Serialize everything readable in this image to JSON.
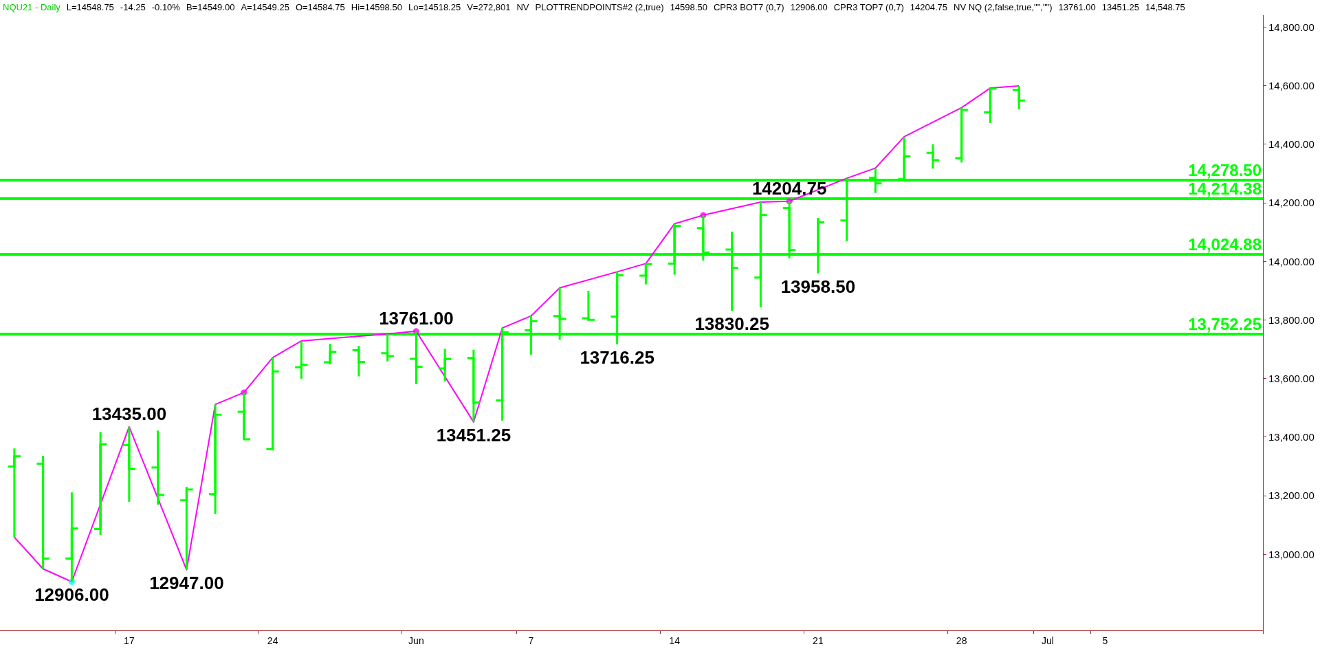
{
  "chart_data": {
    "type": "candlestick",
    "title": "NQU21 - Daily",
    "annotations": [
      "L=14548.75",
      "-14.25",
      "-0.10%",
      "B=14549.00",
      "A=14549.25",
      "O=14584.75",
      "Hi=14598.50",
      "Lo=14518.25",
      "V=272,801",
      "NV",
      "PLOTTRENDPOINTS#2 (2,true)",
      "14598.50",
      "CPR3 BOT7 (0,7)",
      "12906.00",
      "CPR3 TOP7 (0,7)",
      "14204.75",
      "NV NQ (2,false,true,\"\",\"\")",
      "13761.00",
      "13451.25",
      "14,548.75"
    ],
    "categories": [
      null,
      null,
      null,
      null,
      "17",
      null,
      null,
      null,
      null,
      "24",
      null,
      null,
      null,
      null,
      "Jun",
      null,
      null,
      null,
      "7",
      null,
      null,
      null,
      null,
      "14",
      null,
      null,
      null,
      null,
      "21",
      null,
      null,
      null,
      null,
      "28",
      null,
      null,
      "Jul",
      null,
      "5",
      null,
      null,
      null,
      null,
      null
    ],
    "series": [
      {
        "type": "candlestick",
        "color": "#00ff00",
        "value_labels": [
          null,
          null,
          "12906.00",
          null,
          "13435.00",
          null,
          "12947.00",
          null,
          null,
          null,
          null,
          null,
          null,
          null,
          "13761.00",
          null,
          "13451.25",
          null,
          null,
          null,
          null,
          "13716.25",
          null,
          null,
          null,
          "13830.25",
          null,
          "14204.75",
          "13958.50",
          null,
          null,
          null,
          null,
          null,
          null,
          null,
          null,
          null,
          null,
          null,
          null,
          null,
          null,
          null
        ],
        "ohlc": [
          [
            13299,
            13361,
            13058,
            13334
          ],
          [
            13309,
            13336,
            12950,
            12985
          ],
          [
            12985,
            13211,
            12906,
            13088
          ],
          [
            13086,
            13417,
            13066,
            13375
          ],
          [
            13373,
            13435,
            13179,
            13291
          ],
          [
            13296,
            13422,
            13169,
            13202
          ],
          [
            13184,
            13230,
            12947,
            13221
          ],
          [
            13205,
            13511,
            13137,
            13476
          ],
          [
            13486,
            13552,
            13390,
            13392
          ],
          [
            13359,
            13671,
            13354,
            13624
          ],
          [
            13638,
            13728,
            13599,
            13646
          ],
          [
            13655,
            13718,
            13648,
            13690
          ],
          [
            13696,
            13711,
            13607,
            13656
          ],
          [
            13686,
            13752,
            13658,
            13676
          ],
          [
            13667,
            13761,
            13580,
            13640
          ],
          [
            13634,
            13701,
            13590,
            13666
          ],
          [
            13670,
            13698,
            13451.25,
            13518
          ],
          [
            13525,
            13772,
            13456,
            13757
          ],
          [
            13765,
            13813,
            13681,
            13796
          ],
          [
            13813,
            13909,
            13732,
            13803
          ],
          [
            13805,
            13899,
            13798,
            13800
          ],
          [
            13811,
            13964,
            13716.25,
            13952
          ],
          [
            13951,
            13992,
            13921,
            13990
          ],
          [
            13992,
            14128,
            13954,
            14121
          ],
          [
            14113,
            14157,
            14002,
            14030
          ],
          [
            14040,
            14101,
            13830.25,
            13977
          ],
          [
            13944,
            14202,
            13843,
            14158
          ],
          [
            14182,
            14204.75,
            14010,
            14038
          ],
          [
            14025,
            14148,
            13958.5,
            14133
          ],
          [
            14139,
            14283,
            14068,
            14278
          ],
          [
            14285,
            14318,
            14233,
            14266
          ],
          [
            14280,
            14425,
            14274,
            14358
          ],
          [
            14370,
            14399,
            14316,
            14345
          ],
          [
            14352,
            14524,
            14337,
            14517
          ],
          [
            14508,
            14591,
            14472,
            14589
          ],
          [
            14584.75,
            14598.5,
            14518.25,
            14548.75
          ],
          null,
          null,
          null,
          null,
          null,
          null,
          null,
          null
        ]
      },
      {
        "type": "line",
        "color": "#ff00ff",
        "marker": "none",
        "values": [
          13058,
          12950,
          12906,
          null,
          13435,
          null,
          12947,
          13511,
          13552,
          13671,
          13728,
          null,
          null,
          13752,
          13761,
          null,
          13451.25,
          13772,
          13813,
          13909,
          null,
          13964,
          13992,
          14128,
          14157,
          null,
          14202,
          14204.75,
          null,
          14283,
          14318,
          14425,
          null,
          14524,
          14591,
          14598.5,
          null,
          null,
          null,
          null,
          null,
          null,
          null,
          null
        ]
      },
      {
        "type": "scatter",
        "marker": "circle",
        "values": [
          null,
          null,
          12906,
          null,
          null,
          null,
          null,
          null,
          13552,
          null,
          null,
          null,
          null,
          null,
          13761,
          null,
          null,
          null,
          null,
          null,
          null,
          null,
          null,
          null,
          14157,
          null,
          null,
          14204.75,
          null,
          null,
          null,
          null,
          null,
          null,
          null,
          null,
          null,
          null,
          null,
          null,
          null,
          null,
          null,
          null
        ],
        "colors": [
          null,
          null,
          "#00ffff",
          null,
          null,
          null,
          null,
          null,
          "#ff00ff",
          null,
          null,
          null,
          null,
          null,
          "#ff00ff",
          null,
          null,
          null,
          null,
          null,
          null,
          null,
          null,
          null,
          "#ff00ff",
          null,
          null,
          "#ff00ff",
          null,
          null,
          null,
          null,
          null,
          null,
          null,
          null,
          null,
          null,
          null,
          null,
          null,
          null,
          null,
          null
        ]
      }
    ],
    "ylim": [
      12740,
      14840
    ],
    "yticks": [
      {
        "value": 13000,
        "label": "13,000.00"
      },
      {
        "value": 13200,
        "label": "13,200.00"
      },
      {
        "value": 13400,
        "label": "13,400.00"
      },
      {
        "value": 13600,
        "label": "13,600.00"
      },
      {
        "value": 13800,
        "label": "13,800.00"
      },
      {
        "value": 14000,
        "label": "14,000.00"
      },
      {
        "value": 14200,
        "label": "14,200.00"
      },
      {
        "value": 14400,
        "label": "14,400.00"
      },
      {
        "value": 14600,
        "label": "14,600.00"
      },
      {
        "value": 14800,
        "label": "14,800.00"
      }
    ],
    "ref_lines": [
      {
        "axis": "y",
        "value": 14278.5,
        "label": "14,278.50",
        "color": "#00ff00"
      },
      {
        "axis": "y",
        "value": 14214.38,
        "label": "14,214.38",
        "color": "#00ff00"
      },
      {
        "axis": "y",
        "value": 14024.88,
        "label": "14,024.88",
        "color": "#00ff00"
      },
      {
        "axis": "y",
        "value": 13752.25,
        "label": "13,752.25",
        "color": "#00ff00"
      }
    ],
    "grid": false
  }
}
